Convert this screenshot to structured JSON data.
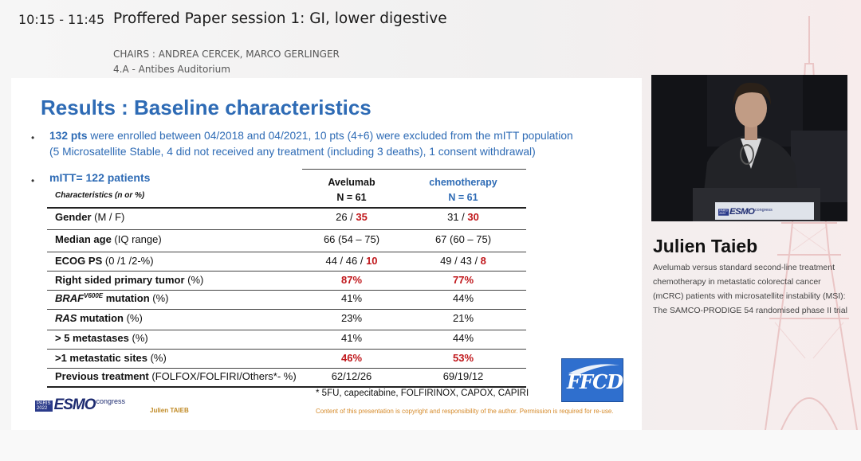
{
  "header": {
    "time": "10:15 - 11:45",
    "session_title": "Proffered Paper session 1: GI, lower digestive",
    "chairs": "CHAIRS : ANDREA CERCEK, MARCO GERLINGER",
    "room": "4.A - Antibes Auditorium"
  },
  "slide": {
    "title": "Results : Baseline characteristics",
    "bullet_char": "•",
    "enrollment": {
      "pts_strong": "132 pts",
      "text_line1": " were enrolled between 04/2018 and 04/2021, 10 pts (4+6) were excluded from the mITT population",
      "text_line2": "(5 Microsatellite Stable, 4 did not received any treatment (including 3 deaths), 1 consent withdrawal)"
    },
    "mitt": "mITT= 122 patients",
    "characteristics_header": "Characteristics (n or %)",
    "columns": [
      {
        "name": "Avelumab",
        "n": "N = 61"
      },
      {
        "name": "chemotherapy",
        "n": "N = 61"
      }
    ],
    "rows": [
      {
        "label_bold": "Gender",
        "label_rest": " (M / F)",
        "a_pre": "26 / ",
        "a_red": "35",
        "c_pre": "31 / ",
        "c_red": "30"
      },
      {
        "label_bold": "Median age",
        "label_rest": " (IQ range)",
        "a_pre": "66 (54 – 75)",
        "a_red": "",
        "c_pre": "67 (60 – 75)",
        "c_red": ""
      },
      {
        "label_bold": "ECOG PS",
        "label_rest": " (0 /1 /2-%)",
        "a_pre": "44 / 46 / ",
        "a_red": "10",
        "c_pre": "49 / 43 / ",
        "c_red": "8"
      },
      {
        "label_bold": "Right sided primary tumor",
        "label_rest": " (%)",
        "a_pre": "",
        "a_red": "87%",
        "c_pre": "",
        "c_red": "77%"
      },
      {
        "label_ital": "BRAF",
        "label_sup": "V600E",
        "label_bold": " mutation",
        "label_rest": " (%)",
        "a_pre": "41%",
        "a_red": "",
        "c_pre": "44%",
        "c_red": ""
      },
      {
        "label_ital": "RAS",
        "label_bold": " mutation",
        "label_rest": " (%)",
        "a_pre": "23%",
        "a_red": "",
        "c_pre": "21%",
        "c_red": ""
      },
      {
        "label_bold": "> 5 metastases",
        "label_rest": " (%)",
        "a_pre": "41%",
        "a_red": "",
        "c_pre": "44%",
        "c_red": ""
      },
      {
        "label_bold": ">1 metastatic sites",
        "label_rest": " (%)",
        "a_pre": "",
        "a_red": "46%",
        "c_pre": "",
        "c_red": "53%"
      },
      {
        "label_bold": "Previous treatment",
        "label_rest": " (FOLFOX/FOLFIRI/Others*- %)",
        "a_pre": "62/12/26",
        "a_red": "",
        "c_pre": "69/19/12",
        "c_red": ""
      }
    ],
    "footnote": "* 5FU, capecitabine, FOLFIRINOX, CAPOX, CAPIRI",
    "presenter_small": "Julien TAIEB",
    "copyright": "Content of this presentation is copyright and responsibility of the author. Permission is required for re-use.",
    "ffcd_logo": "FFCD"
  },
  "esmo_logo": {
    "city": "PARIS",
    "year": "2022",
    "word": "ESMO",
    "congress": "congress"
  },
  "speaker": {
    "name": "Julien Taieb",
    "talk_title": "Avelumab versus standard second-line treatment chemotherapy in metastatic colorectal cancer (mCRC) patients with microsatellite instability (MSI): The SAMCO-PRODIGE 54 randomised phase II trial"
  },
  "colors": {
    "accent_blue": "#2e6bb5",
    "highlight_red": "#c0171b",
    "esmo_navy": "#1d2b70"
  }
}
